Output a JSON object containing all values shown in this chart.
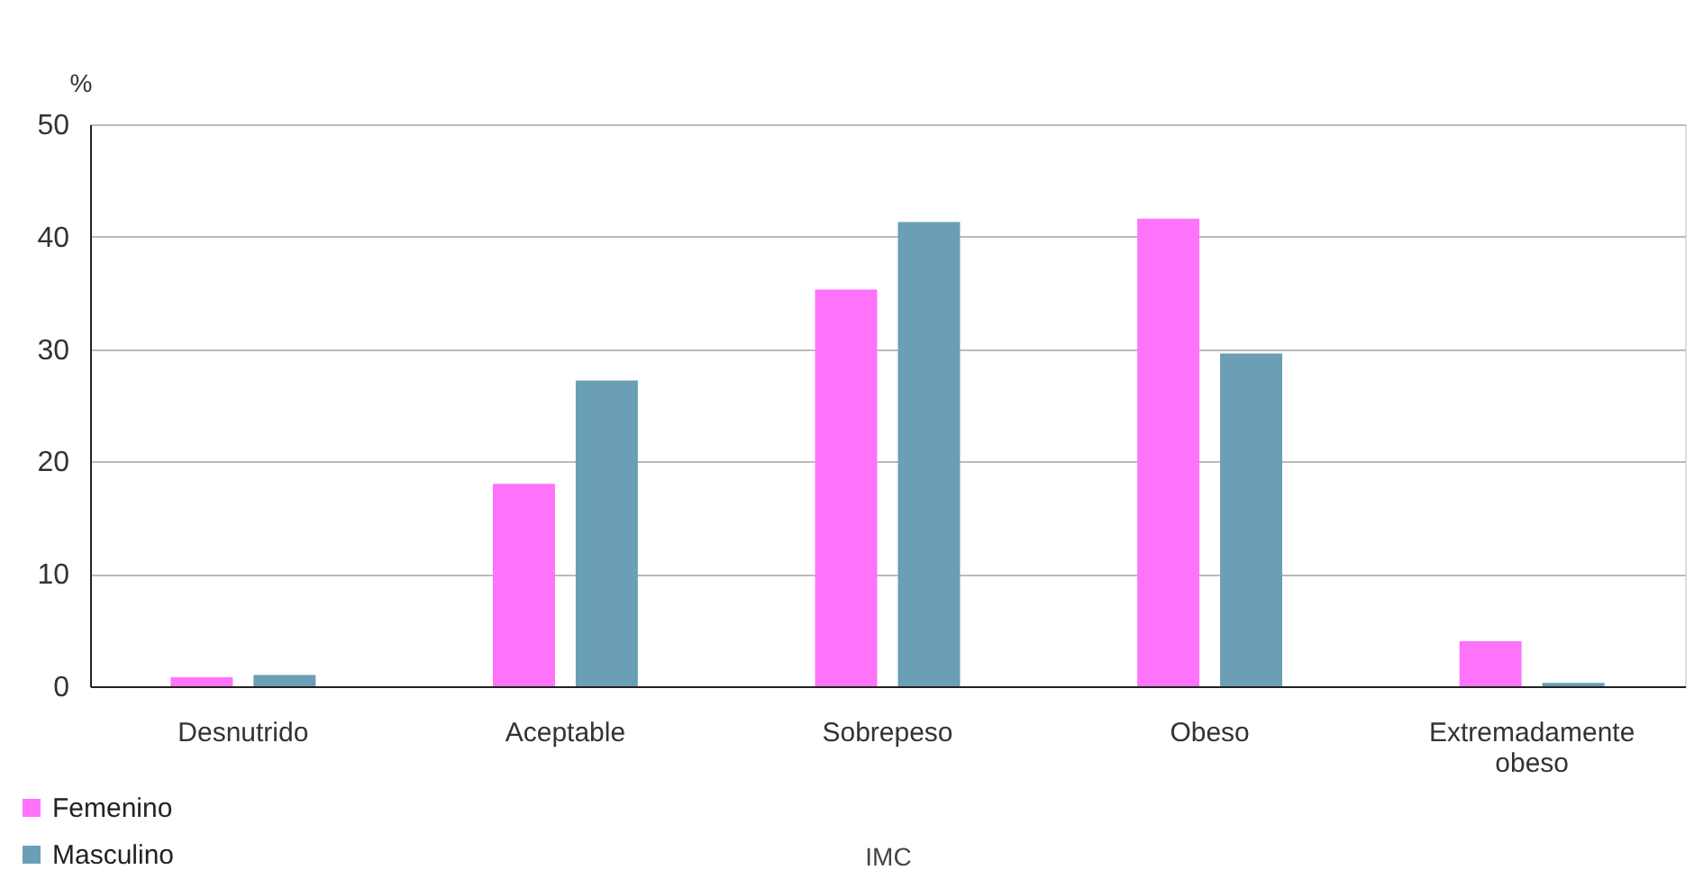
{
  "chart_data": {
    "type": "bar",
    "ylabel": "%",
    "xlabel": "IMC",
    "categories": [
      "Desnutrido",
      "Aceptable",
      "Sobrepeso",
      "Obeso",
      "Extremadamente obeso"
    ],
    "series": [
      {
        "name": "Femenino",
        "color": "#ff73fa",
        "values": [
          0.8,
          18,
          35.3,
          41.6,
          4.0
        ]
      },
      {
        "name": "Masculino",
        "color": "#6a9fb5",
        "values": [
          1.0,
          27.2,
          41.3,
          29.6,
          0.3
        ]
      }
    ],
    "ylim": [
      0,
      50
    ],
    "yticks": [
      0,
      10,
      20,
      30,
      40,
      50
    ],
    "grid": "y",
    "legend": "bottom left"
  }
}
